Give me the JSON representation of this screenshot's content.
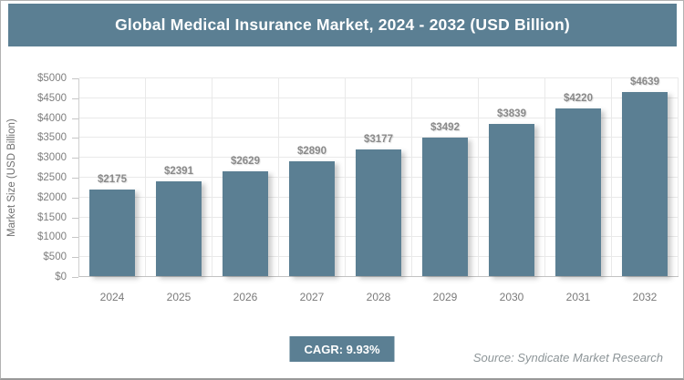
{
  "header": {
    "title": "Global Medical Insurance Market, 2024 - 2032 (USD Billion)"
  },
  "footer": {
    "cagr_label": "CAGR: 9.93%",
    "source": "Source: Syndicate Market Research"
  },
  "colors": {
    "accent": "#5b7f93",
    "grid": "#e9e9e9",
    "value_label": "#8a8a8a",
    "axis_label": "#7f7f7f"
  },
  "chart_data": {
    "type": "bar",
    "title": "Global Medical Insurance Market, 2024 - 2032 (USD Billion)",
    "categories": [
      "2024",
      "2025",
      "2026",
      "2027",
      "2028",
      "2029",
      "2030",
      "2031",
      "2032"
    ],
    "values": [
      2175,
      2391,
      2629,
      2890,
      3177,
      3492,
      3839,
      4220,
      4639
    ],
    "value_labels": [
      "$2175",
      "$2391",
      "$2629",
      "$2890",
      "$3177",
      "$3492",
      "$3839",
      "$4220",
      "$4639"
    ],
    "xlabel": "",
    "ylabel": "Market Size (USD Billion)",
    "ylim": [
      0,
      5000
    ],
    "y_tick_step": 500,
    "y_tick_labels": [
      "$0",
      "$500",
      "$1000",
      "$1500",
      "$2000",
      "$2500",
      "$3000",
      "$3500",
      "$4000",
      "$4500",
      "$5000"
    ],
    "grid": true,
    "legend": false,
    "cagr": "9.93%"
  }
}
